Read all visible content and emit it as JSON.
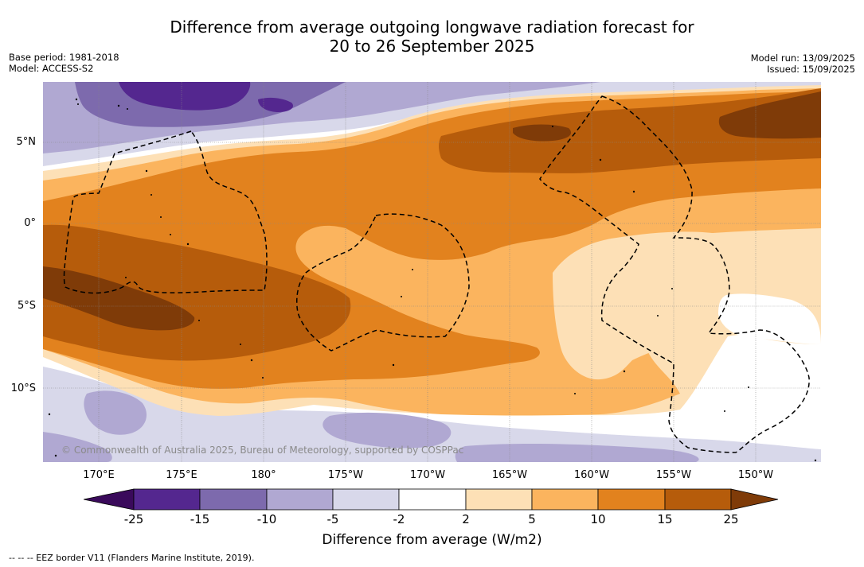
{
  "title": {
    "line1": "Difference from average outgoing longwave radiation forecast for",
    "line2": "20 to 26 September 2025"
  },
  "meta_left": {
    "base_period": "Base period: 1981-2018",
    "model": "Model: ACCESS-S2"
  },
  "meta_right": {
    "model_run": "Model run: 13/09/2025",
    "issued": "Issued: 15/09/2025"
  },
  "map": {
    "lat_labels": [
      "5°N",
      "0°",
      "5°S",
      "10°S"
    ],
    "lon_labels": [
      "170°E",
      "175°E",
      "180°",
      "175°W",
      "170°W",
      "165°W",
      "160°W",
      "155°W",
      "150°W"
    ],
    "copyright": "© Commonwealth of Australia 2025, Bureau of Meteorology, supported by COSPPac",
    "land_color": "#000000",
    "eez_line_color": "#000000"
  },
  "colorbar": {
    "ticks": [
      "-25",
      "-15",
      "-10",
      "-5",
      "-2",
      "2",
      "5",
      "10",
      "15",
      "25"
    ],
    "colors": [
      "#3a0a5b",
      "#54278f",
      "#7d6aad",
      "#b0a8d2",
      "#d8d8ea",
      "#ffffff",
      "#fde0b6",
      "#fbb45e",
      "#e2821e",
      "#b65c0b",
      "#7f3b08"
    ],
    "label": "Difference from average (W/m2)"
  },
  "legend": {
    "eez": "--  --  -- EEZ border V11 (Flanders Marine Institute, 2019)."
  }
}
